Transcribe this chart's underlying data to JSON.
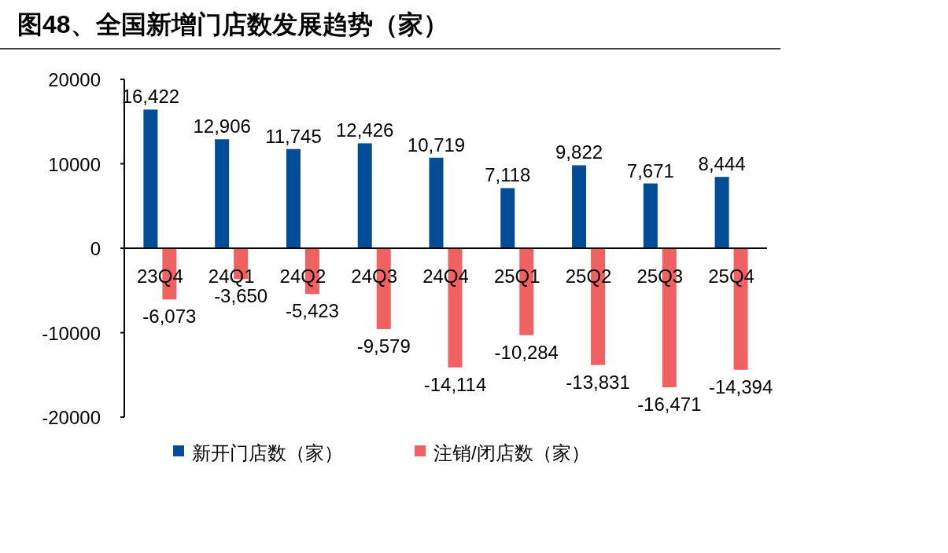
{
  "chart_data": {
    "type": "bar",
    "title": "图48、全国新增门店数发展趋势（家）",
    "categories": [
      "23Q4",
      "24Q1",
      "24Q2",
      "24Q3",
      "24Q4",
      "25Q1",
      "25Q2",
      "25Q3",
      "25Q4"
    ],
    "series": [
      {
        "name": "新开门店数（家）",
        "color": "#004c97",
        "values": [
          16422,
          12906,
          11745,
          12426,
          10719,
          7118,
          9822,
          7671,
          8444
        ],
        "value_labels": [
          "16,422",
          "12,906",
          "11,745",
          "12,426",
          "10,719",
          "7,118",
          "9,822",
          "7,671",
          "8,444"
        ]
      },
      {
        "name": "注销/闭店数（家）",
        "color": "#f06262",
        "values": [
          -6073,
          -3650,
          -5423,
          -9579,
          -14114,
          -10284,
          -13831,
          -16471,
          -14394
        ],
        "value_labels": [
          "-6,073",
          "-3,650",
          "-5,423",
          "-9,579",
          "-14,114",
          "-10,284",
          "-13,831",
          "-16,471",
          "-14,394"
        ]
      }
    ],
    "ylim": [
      -20000,
      20000
    ],
    "yticks": [
      -20000,
      -10000,
      0,
      10000,
      20000
    ],
    "grid": false,
    "legend": "bottom"
  }
}
